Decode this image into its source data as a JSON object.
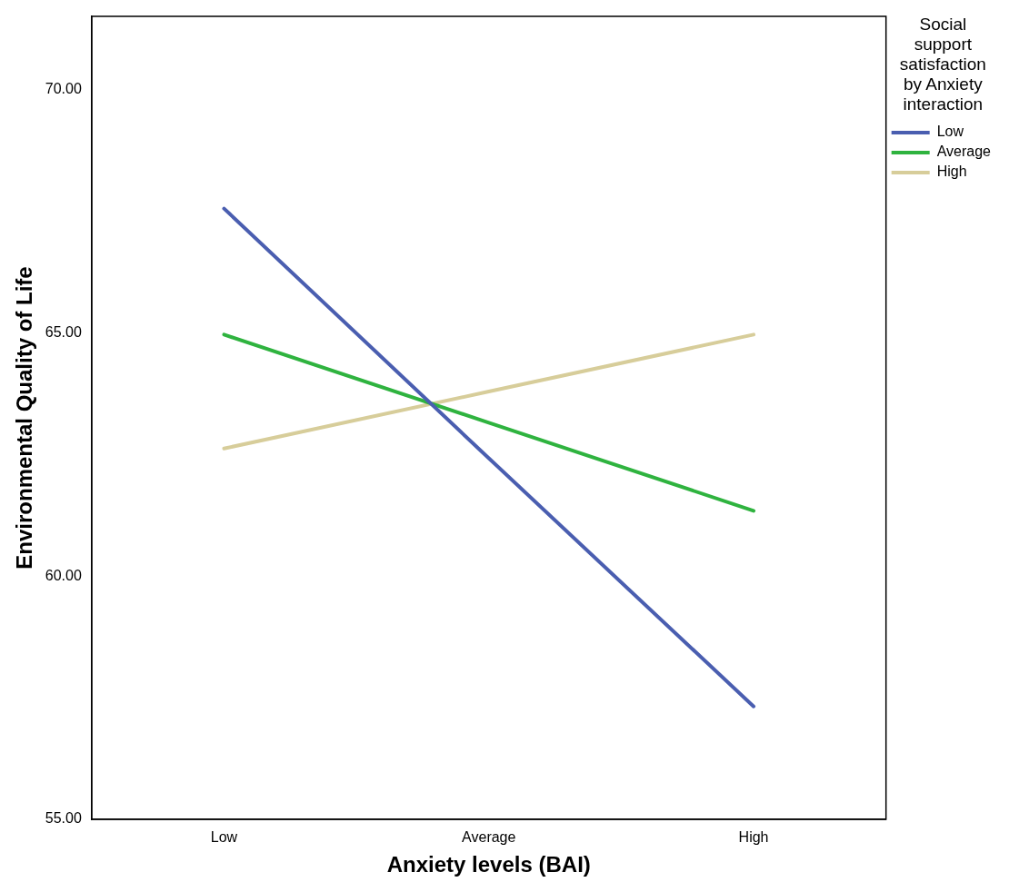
{
  "chart_data": {
    "type": "line",
    "xlabel": "Anxiety levels (BAI)",
    "ylabel": "Environmental Quality of Life",
    "legend_title": "Social support satisfaction by Anxiety interaction",
    "categories": [
      "Low",
      "Average",
      "High"
    ],
    "series": [
      {
        "name": "Low",
        "color": "#4a5eb0",
        "values": [
          67.55,
          62.42,
          57.32
        ]
      },
      {
        "name": "Average",
        "color": "#2fb33f",
        "values": [
          64.96,
          63.15,
          61.34
        ]
      },
      {
        "name": "High",
        "color": "#d7cd9a",
        "values": [
          62.62,
          63.79,
          64.96
        ]
      }
    ],
    "ylim": [
      55,
      71.5
    ],
    "yticks": [
      {
        "value": 55,
        "label": "55.00"
      },
      {
        "value": 60,
        "label": "60.00"
      },
      {
        "value": 65,
        "label": "65.00"
      },
      {
        "value": 70,
        "label": "70.00"
      }
    ],
    "grid": false,
    "legend": "top right",
    "marker": "none",
    "line_style": "solid"
  }
}
